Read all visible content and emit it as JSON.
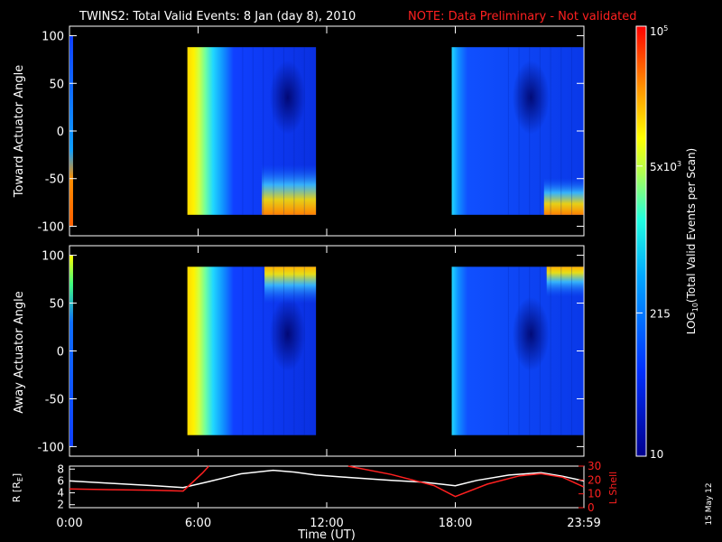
{
  "header": {
    "title": "TWINS2: Total Valid Events:  8 Jan (day   8), 2010",
    "note": "NOTE: Data Preliminary - Not validated",
    "note_color": "#ff2020"
  },
  "footer": {
    "date_stamp": "15 May 12"
  },
  "chart_data": [
    {
      "type": "heatmap",
      "title": "",
      "ylabel": "Toward Actuator Angle",
      "ylim": [
        -110,
        110
      ],
      "yticks": [
        "100",
        "50",
        "0",
        "-50",
        "-100"
      ],
      "xlim_hours": [
        0,
        24
      ],
      "data_blocks": [
        {
          "start": "5:30",
          "end": "11:30",
          "angle_range": [
            -88,
            88
          ]
        },
        {
          "start": "17:50",
          "end": "23:59",
          "angle_range": [
            -88,
            88
          ]
        }
      ],
      "edge_strip": {
        "start": "0:00",
        "end": "0:10",
        "angle_range": [
          -100,
          100
        ]
      }
    },
    {
      "type": "heatmap",
      "title": "",
      "ylabel": "Away Actuator Angle",
      "ylim": [
        -110,
        110
      ],
      "yticks": [
        "100",
        "50",
        "0",
        "-50",
        "-100"
      ],
      "xlim_hours": [
        0,
        24
      ],
      "data_blocks": [
        {
          "start": "5:30",
          "end": "11:30",
          "angle_range": [
            -88,
            88
          ]
        },
        {
          "start": "17:50",
          "end": "23:59",
          "angle_range": [
            -88,
            88
          ]
        }
      ],
      "edge_strip": {
        "start": "0:00",
        "end": "0:10",
        "angle_range": [
          -100,
          100
        ]
      }
    },
    {
      "type": "line",
      "xlabel": "Time (UT)",
      "xticks": [
        "0:00",
        "6:00",
        "12:00",
        "18:00",
        "23:59"
      ],
      "ylabel_left": "R [R",
      "ylabel_left_sub": "E",
      "ylabel_left_end": "]",
      "ylabel_right": "L Shell",
      "ylim_left": [
        1.5,
        8.5
      ],
      "yticks_left": [
        "8",
        "6",
        "4",
        "2"
      ],
      "ylim_right": [
        0,
        30
      ],
      "yticks_right": [
        "30",
        "20",
        "10",
        "0"
      ],
      "series": [
        {
          "axis": "left",
          "color": "#ffffff",
          "x": [
            0,
            2,
            4,
            5.3,
            6.5,
            8,
            9.5,
            10.5,
            11.5,
            13,
            15,
            16.5,
            17.5,
            18,
            19,
            20.5,
            22,
            23,
            23.99
          ],
          "y": [
            6.0,
            5.6,
            5.2,
            4.9,
            5.9,
            7.2,
            7.8,
            7.5,
            7.0,
            6.6,
            6.1,
            5.8,
            5.4,
            5.2,
            6.1,
            7.0,
            7.4,
            6.8,
            6.0
          ]
        },
        {
          "axis": "right",
          "color": "#ff2020",
          "x": [
            0,
            2,
            4,
            5.3,
            6.2,
            6.5
          ],
          "y": [
            13.5,
            13.0,
            12.5,
            12.0,
            25.0,
            30.0
          ]
        },
        {
          "axis": "right",
          "color": "#ff2020",
          "x": [
            13.0,
            15.0,
            17.0,
            18.0,
            19.5,
            21.0,
            22.0,
            23.0,
            23.99
          ],
          "y": [
            30.0,
            24.0,
            16.0,
            8.0,
            17.0,
            23.0,
            24.5,
            22.0,
            15.0
          ]
        }
      ]
    }
  ],
  "colorbar": {
    "label_log": "LOG",
    "label_sub": "10",
    "label_rest": "(Total Valid Events per Scan)",
    "scale": "log",
    "range": [
      10,
      100000
    ],
    "ticks": [
      {
        "value": 100000,
        "base": "10",
        "exp": "5"
      },
      {
        "value": 5000,
        "base": "5x10",
        "exp": "3"
      },
      {
        "value": 215,
        "base": "215",
        "exp": ""
      },
      {
        "value": 10,
        "base": "10",
        "exp": ""
      }
    ]
  }
}
